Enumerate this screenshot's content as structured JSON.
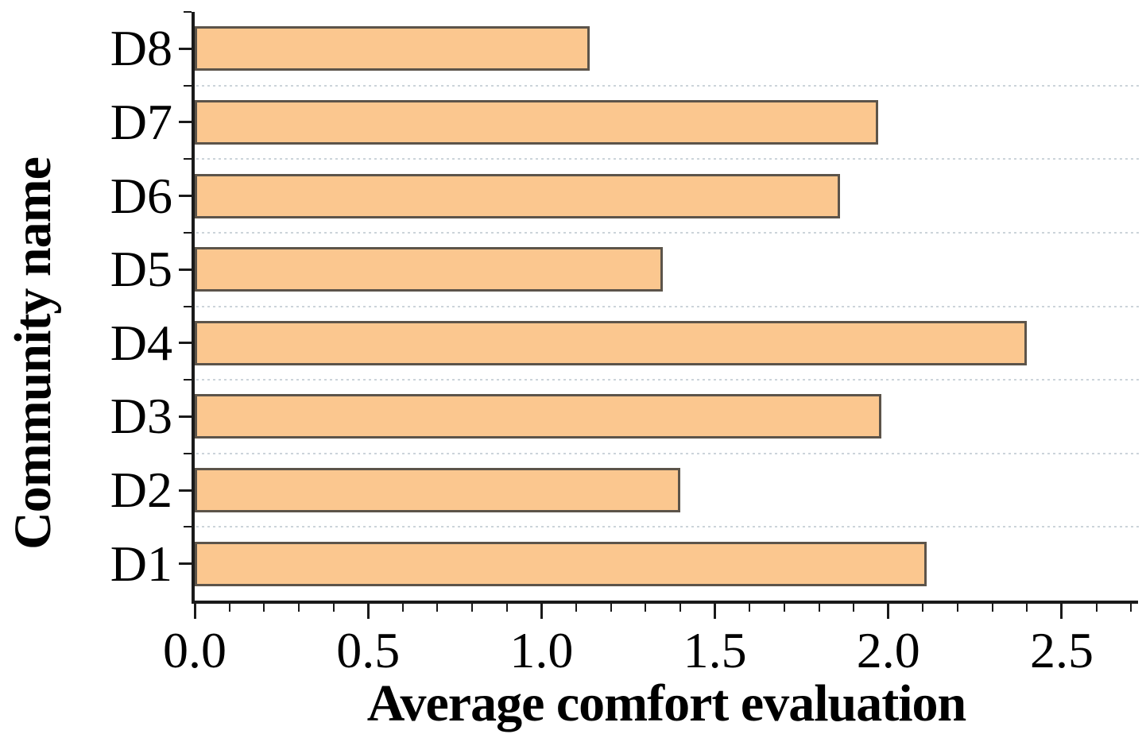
{
  "chart_data": {
    "type": "bar",
    "orientation": "horizontal",
    "title": "",
    "xlabel": "Average comfort evaluation",
    "ylabel": "Community name",
    "categories": [
      "D1",
      "D2",
      "D3",
      "D4",
      "D5",
      "D6",
      "D7",
      "D8"
    ],
    "values": [
      2.11,
      1.4,
      1.98,
      2.4,
      1.35,
      1.86,
      1.97,
      1.14
    ],
    "xlim": [
      0,
      2.72
    ],
    "x_major_ticks": [
      0.0,
      0.5,
      1.0,
      1.5,
      2.0,
      2.5
    ],
    "x_tick_labels": [
      "0.0",
      "0.5",
      "1.0",
      "1.5",
      "2.0",
      "2.5"
    ],
    "x_minor_step": 0.1,
    "legend": "none",
    "grid": "dotted horizontal lines at category boundaries",
    "colors": {
      "bar_fill": "#FBC78F",
      "bar_edge": "#5C544A",
      "axis": "#1A1A1A",
      "gridline": "#CCD4DA",
      "text": "#000000",
      "background": "#FFFFFF"
    }
  }
}
